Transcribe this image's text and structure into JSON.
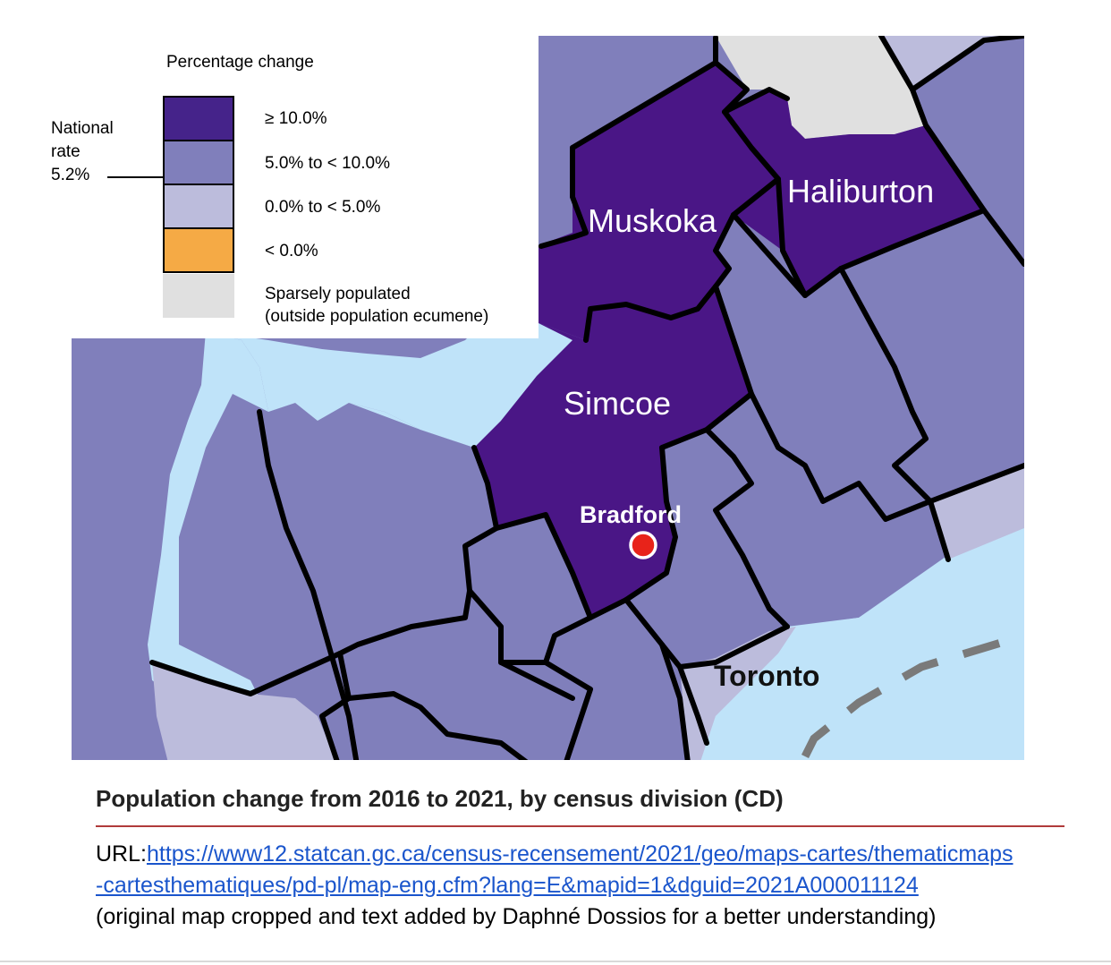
{
  "legend": {
    "title": "Percentage change",
    "national_rate": {
      "line1": "National",
      "line2": "rate",
      "value": "5.2%"
    },
    "items": [
      {
        "label": "≥ 10.0%",
        "color": "#45238a"
      },
      {
        "label": "5.0% to < 10.0%",
        "color": "#807fbb"
      },
      {
        "label": "0.0% to < 5.0%",
        "color": "#bcbcdc"
      },
      {
        "label": "< 0.0%",
        "color": "#f5aa45"
      },
      {
        "label_line1": "Sparsely populated",
        "label_line2": "(outside population ecumene)",
        "color": "#e0e0e0"
      }
    ]
  },
  "map": {
    "water_color": "#bfe3f9",
    "regions": {
      "muskoka": "Muskoka",
      "haliburton": "Haliburton",
      "simcoe": "Simcoe"
    },
    "cities": {
      "bradford": "Bradford",
      "toronto": "Toronto"
    },
    "marker_color": "#e8231a"
  },
  "caption": {
    "title": "Population change from 2016 to 2021, by census division (CD)",
    "url_prefix": "URL:",
    "url_line1": "https://www12.statcan.gc.ca/census-recensement/2021/geo/maps-cartes/thematicmaps",
    "url_line2": "-cartesthematiques/pd-pl/map-eng.cfm?lang=E&mapid=1&dguid=2021A000011124",
    "note": "(original map cropped and text added by Daphné Dossios for a better understanding)"
  }
}
